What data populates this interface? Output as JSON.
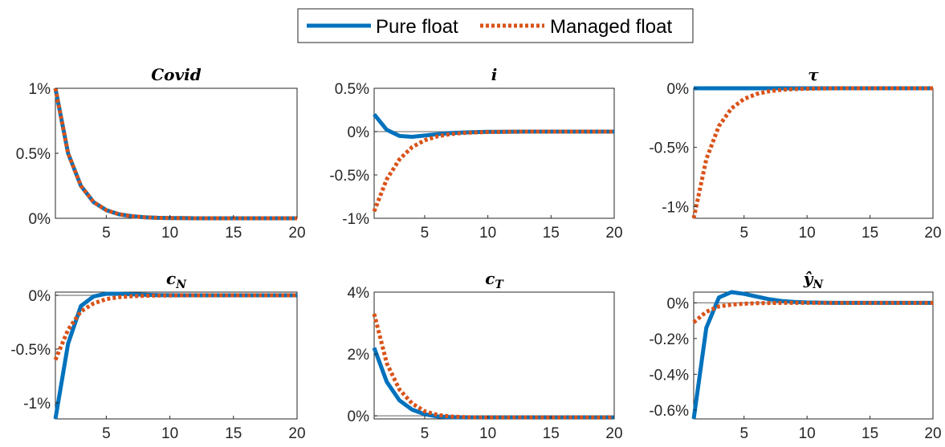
{
  "legend": {
    "entries": [
      {
        "label": "Pure float",
        "color": "#0072BD",
        "style": "solid"
      },
      {
        "label": "Managed float",
        "color": "#D95319",
        "style": "dotted"
      }
    ]
  },
  "chart_data": [
    {
      "type": "line",
      "title": "Covid",
      "x": [
        1,
        2,
        3,
        4,
        5,
        6,
        7,
        8,
        9,
        10,
        11,
        12,
        13,
        14,
        15,
        16,
        17,
        18,
        19,
        20
      ],
      "xlim": [
        1,
        20
      ],
      "ylim": [
        0,
        1
      ],
      "xticks": [
        5,
        10,
        15,
        20
      ],
      "xtick_labels": [
        "5",
        "10",
        "15",
        "20"
      ],
      "yticks": [
        0,
        0.5,
        1
      ],
      "ytick_labels": [
        "0%",
        "0.5%",
        "1%"
      ],
      "zero_line": false,
      "series": [
        {
          "name": "Pure float",
          "values": [
            1,
            0.5,
            0.25,
            0.125,
            0.0625,
            0.031,
            0.016,
            0.008,
            0.004,
            0.002,
            0.001,
            0,
            0,
            0,
            0,
            0,
            0,
            0,
            0,
            0
          ]
        },
        {
          "name": "Managed float",
          "values": [
            1,
            0.5,
            0.25,
            0.125,
            0.0625,
            0.031,
            0.016,
            0.008,
            0.004,
            0.002,
            0.001,
            0,
            0,
            0,
            0,
            0,
            0,
            0,
            0,
            0
          ]
        }
      ]
    },
    {
      "type": "line",
      "title": "i",
      "x": [
        1,
        2,
        3,
        4,
        5,
        6,
        7,
        8,
        9,
        10,
        11,
        12,
        13,
        14,
        15,
        16,
        17,
        18,
        19,
        20
      ],
      "xlim": [
        1,
        20
      ],
      "ylim": [
        -1,
        0.5
      ],
      "xticks": [
        5,
        10,
        15,
        20
      ],
      "xtick_labels": [
        "5",
        "10",
        "15",
        "20"
      ],
      "yticks": [
        -1,
        -0.5,
        0,
        0.5
      ],
      "ytick_labels": [
        "-1%",
        "-0.5%",
        "0%",
        "0.5%"
      ],
      "zero_line": true,
      "series": [
        {
          "name": "Pure float",
          "values": [
            0.2,
            0.02,
            -0.05,
            -0.06,
            -0.045,
            -0.03,
            -0.018,
            -0.01,
            -0.006,
            -0.003,
            -0.002,
            -0.001,
            0,
            0,
            0,
            0,
            0,
            0,
            0,
            0
          ]
        },
        {
          "name": "Managed float",
          "values": [
            -0.92,
            -0.55,
            -0.32,
            -0.18,
            -0.1,
            -0.055,
            -0.03,
            -0.016,
            -0.009,
            -0.005,
            -0.003,
            -0.001,
            0,
            0,
            0,
            0,
            0,
            0,
            0,
            0
          ]
        }
      ]
    },
    {
      "type": "line",
      "title": "τ",
      "x": [
        1,
        2,
        3,
        4,
        5,
        6,
        7,
        8,
        9,
        10,
        11,
        12,
        13,
        14,
        15,
        16,
        17,
        18,
        19,
        20
      ],
      "xlim": [
        1,
        20
      ],
      "ylim": [
        -1.1,
        0
      ],
      "xticks": [
        5,
        10,
        15,
        20
      ],
      "xtick_labels": [
        "5",
        "10",
        "15",
        "20"
      ],
      "yticks": [
        -1,
        -0.5,
        0
      ],
      "ytick_labels": [
        "-1%",
        "-0.5%",
        "0%"
      ],
      "zero_line": false,
      "series": [
        {
          "name": "Pure float",
          "values": [
            0,
            0,
            0,
            0,
            0,
            0,
            0,
            0,
            0,
            0,
            0,
            0,
            0,
            0,
            0,
            0,
            0,
            0,
            0,
            0
          ]
        },
        {
          "name": "Managed float",
          "values": [
            -1.1,
            -0.6,
            -0.32,
            -0.17,
            -0.09,
            -0.048,
            -0.025,
            -0.013,
            -0.007,
            -0.004,
            -0.002,
            -0.001,
            0,
            0,
            0,
            0,
            0,
            0,
            0,
            0
          ]
        }
      ]
    },
    {
      "type": "line",
      "title": "cN",
      "x": [
        1,
        2,
        3,
        4,
        5,
        6,
        7,
        8,
        9,
        10,
        11,
        12,
        13,
        14,
        15,
        16,
        17,
        18,
        19,
        20
      ],
      "xlim": [
        1,
        20
      ],
      "ylim": [
        -1.15,
        0.03
      ],
      "xticks": [
        5,
        10,
        15,
        20
      ],
      "xtick_labels": [
        "5",
        "10",
        "15",
        "20"
      ],
      "yticks": [
        -1,
        -0.5,
        0
      ],
      "ytick_labels": [
        "-1%",
        "-0.5%",
        "0%"
      ],
      "zero_line": true,
      "series": [
        {
          "name": "Pure float",
          "values": [
            -1.15,
            -0.45,
            -0.1,
            -0.01,
            0.015,
            0.015,
            0.01,
            0.005,
            0.002,
            0.001,
            0,
            0,
            0,
            0,
            0,
            0,
            0,
            0,
            0,
            0
          ]
        },
        {
          "name": "Managed float",
          "values": [
            -0.6,
            -0.32,
            -0.15,
            -0.075,
            -0.035,
            -0.017,
            -0.008,
            -0.004,
            -0.002,
            -0.001,
            0,
            0,
            0,
            0,
            0,
            0,
            0,
            0,
            0,
            0
          ]
        }
      ]
    },
    {
      "type": "line",
      "title": "cT",
      "x": [
        1,
        2,
        3,
        4,
        5,
        6,
        7,
        8,
        9,
        10,
        11,
        12,
        13,
        14,
        15,
        16,
        17,
        18,
        19,
        20
      ],
      "xlim": [
        1,
        20
      ],
      "ylim": [
        -0.1,
        4
      ],
      "xticks": [
        5,
        10,
        15,
        20
      ],
      "xtick_labels": [
        "5",
        "10",
        "15",
        "20"
      ],
      "yticks": [
        0,
        2,
        4
      ],
      "ytick_labels": [
        "0%",
        "2%",
        "4%"
      ],
      "zero_line": true,
      "series": [
        {
          "name": "Pure float",
          "values": [
            2.2,
            1.1,
            0.5,
            0.2,
            0.05,
            -0.02,
            -0.04,
            -0.05,
            -0.05,
            -0.05,
            -0.05,
            -0.05,
            -0.05,
            -0.05,
            -0.05,
            -0.05,
            -0.05,
            -0.05,
            -0.05,
            -0.05
          ]
        },
        {
          "name": "Managed float",
          "values": [
            3.3,
            1.7,
            0.85,
            0.4,
            0.15,
            0.03,
            -0.02,
            -0.04,
            -0.05,
            -0.05,
            -0.05,
            -0.05,
            -0.05,
            -0.05,
            -0.05,
            -0.05,
            -0.05,
            -0.05,
            -0.05,
            -0.05
          ]
        }
      ]
    },
    {
      "type": "line",
      "title": "ŷN",
      "x": [
        1,
        2,
        3,
        4,
        5,
        6,
        7,
        8,
        9,
        10,
        11,
        12,
        13,
        14,
        15,
        16,
        17,
        18,
        19,
        20
      ],
      "xlim": [
        1,
        20
      ],
      "ylim": [
        -0.65,
        0.06
      ],
      "xticks": [
        5,
        10,
        15,
        20
      ],
      "xtick_labels": [
        "5",
        "10",
        "15",
        "20"
      ],
      "yticks": [
        -0.6,
        -0.4,
        -0.2,
        0
      ],
      "ytick_labels": [
        "-0.6%",
        "-0.4%",
        "-0.2%",
        "0%"
      ],
      "zero_line": true,
      "series": [
        {
          "name": "Pure float",
          "values": [
            -0.65,
            -0.14,
            0.03,
            0.06,
            0.05,
            0.035,
            0.02,
            0.01,
            0.005,
            0.002,
            0.001,
            0,
            0,
            0,
            0,
            0,
            0,
            0,
            0,
            0
          ]
        },
        {
          "name": "Managed float",
          "values": [
            -0.11,
            -0.05,
            -0.02,
            -0.01,
            -0.005,
            -0.002,
            -0.001,
            0,
            0,
            0,
            0,
            0,
            0,
            0,
            0,
            0,
            0,
            0,
            0,
            0
          ]
        }
      ]
    }
  ]
}
